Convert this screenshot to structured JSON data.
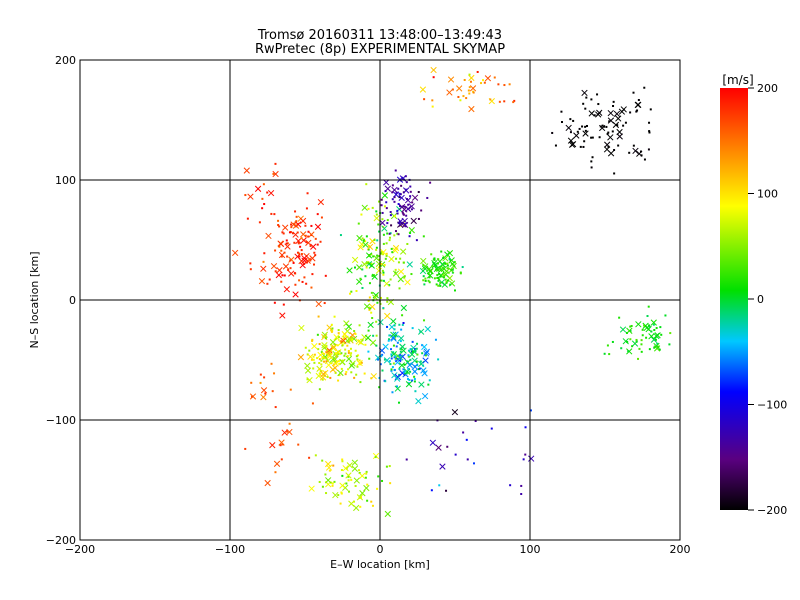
{
  "chart_data": {
    "type": "scatter",
    "title": "Tromsø 20160311 13:48:00–13:49:43",
    "subtitle": "RwPretec (8p) EXPERIMENTAL SKYMAP",
    "xlabel": "E–W location [km]",
    "ylabel": "N–S location [km]",
    "xlim": [
      -200,
      200
    ],
    "ylim": [
      -200,
      200
    ],
    "x_ticks": [
      "−200",
      "−100",
      "0",
      "100",
      "200"
    ],
    "y_ticks": [
      "−200",
      "−100",
      "0",
      "100",
      "200"
    ],
    "grid": true,
    "colorbar": {
      "label": "[m/s]",
      "range": [
        -200,
        200
      ],
      "ticks": [
        "200",
        "100",
        "0",
        "−100",
        "−200"
      ],
      "colormap": "rainbow (black → purple → blue → cyan → green → yellow → red)"
    },
    "marker_types": [
      "dot",
      "cross"
    ],
    "clusters": [
      {
        "center": [
          -55,
          40
        ],
        "spread": [
          18,
          40
        ],
        "count": 120,
        "velocity": 180,
        "vspread": 30
      },
      {
        "center": [
          -30,
          -45
        ],
        "spread": [
          20,
          25
        ],
        "count": 180,
        "velocity": 80,
        "vspread": 55
      },
      {
        "center": [
          -20,
          -150
        ],
        "spread": [
          25,
          25
        ],
        "count": 70,
        "velocity": 70,
        "vspread": 50
      },
      {
        "center": [
          0,
          30
        ],
        "spread": [
          20,
          55
        ],
        "count": 170,
        "velocity": 50,
        "vspread": 70
      },
      {
        "center": [
          15,
          -50
        ],
        "spread": [
          18,
          30
        ],
        "count": 150,
        "velocity": -30,
        "vspread": 60
      },
      {
        "center": [
          40,
          25
        ],
        "spread": [
          15,
          15
        ],
        "count": 90,
        "velocity": 20,
        "vspread": 30
      },
      {
        "center": [
          15,
          80
        ],
        "spread": [
          15,
          25
        ],
        "count": 80,
        "velocity": -140,
        "vspread": 40
      },
      {
        "center": [
          150,
          145
        ],
        "spread": [
          30,
          30
        ],
        "count": 90,
        "velocity": -200,
        "vspread": 5
      },
      {
        "center": [
          60,
          175
        ],
        "spread": [
          30,
          15
        ],
        "count": 40,
        "velocity": 140,
        "vspread": 70
      },
      {
        "center": [
          175,
          -30
        ],
        "spread": [
          20,
          18
        ],
        "count": 60,
        "velocity": 10,
        "vspread": 25
      },
      {
        "center": [
          60,
          -120
        ],
        "spread": [
          45,
          45
        ],
        "count": 25,
        "velocity": -120,
        "vspread": 60
      },
      {
        "center": [
          -80,
          80
        ],
        "spread": [
          15,
          60
        ],
        "count": 25,
        "velocity": 180,
        "vspread": 30
      },
      {
        "center": [
          -70,
          -100
        ],
        "spread": [
          20,
          60
        ],
        "count": 30,
        "velocity": 170,
        "vspread": 30
      }
    ]
  }
}
